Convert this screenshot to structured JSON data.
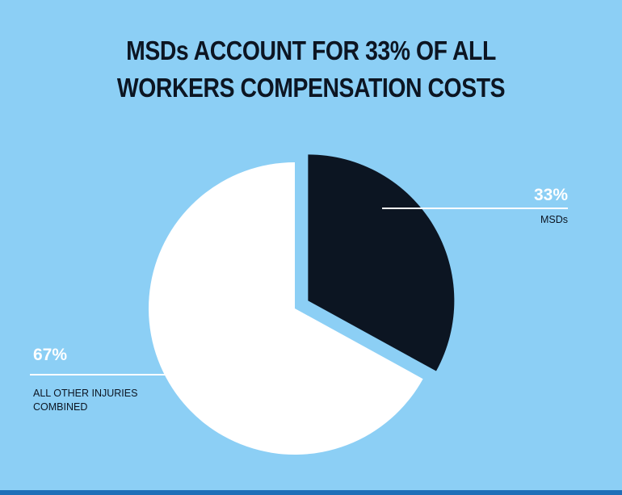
{
  "title_lines": [
    "MSDs ACCOUNT FOR 33% OF ALL",
    "WORKERS COMPENSATION COSTS"
  ],
  "chart_data": {
    "type": "pie",
    "exploded": "MSDs",
    "slices": [
      {
        "label": "MSDs",
        "value": 33,
        "value_label": "33%",
        "color": "#0c1522"
      },
      {
        "label": "ALL OTHER INJURIES COMBINED",
        "value": 67,
        "value_label": "67%",
        "color": "#ffffff"
      }
    ]
  },
  "colors": {
    "background": "#8ccff5",
    "title": "#0c1522",
    "label_text": "#0c1522",
    "value_text": "#ffffff",
    "leader_line": "#ffffff"
  }
}
